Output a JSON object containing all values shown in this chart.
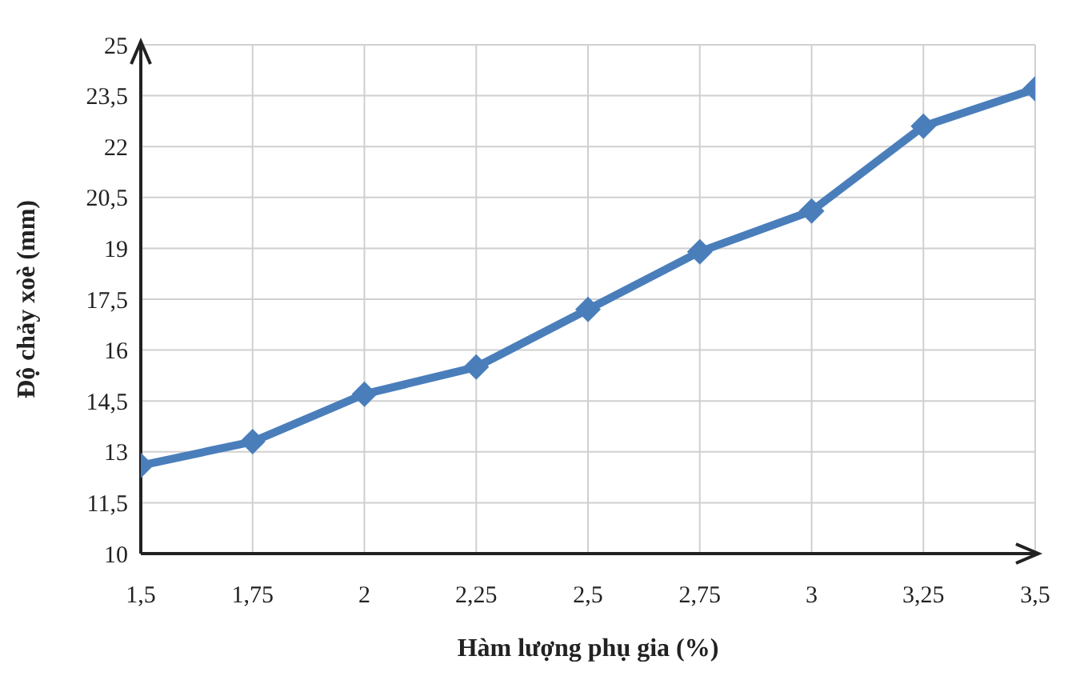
{
  "chart_data": {
    "type": "line",
    "xlabel": "Hàm lượng phụ gia (%)",
    "ylabel": "Độ chảy xoè (mm)",
    "x": [
      1.5,
      1.75,
      2,
      2.25,
      2.5,
      2.75,
      3,
      3.25,
      3.5
    ],
    "series": [
      {
        "color": "#4a7ebb",
        "values": [
          12.6,
          13.3,
          14.7,
          15.5,
          17.2,
          18.9,
          20.1,
          22.6,
          23.7
        ]
      }
    ],
    "xlim": [
      1.5,
      3.5
    ],
    "xticks": [
      {
        "value": 1.5,
        "label": "1,5"
      },
      {
        "value": 1.75,
        "label": "1,75"
      },
      2,
      {
        "value": 2.25,
        "label": "2,25"
      },
      {
        "value": 2.5,
        "label": "2,5"
      },
      {
        "value": 2.75,
        "label": "2,75"
      },
      3,
      {
        "value": 3.25,
        "label": "3,25"
      },
      {
        "value": 3.5,
        "label": "3,5"
      }
    ],
    "ylim": [
      10,
      25
    ],
    "yticks": [
      10,
      {
        "value": 11.5,
        "label": "11,5"
      },
      13,
      {
        "value": 14.5,
        "label": "14,5"
      },
      16,
      {
        "value": 17.5,
        "label": "17,5"
      },
      19,
      {
        "value": 20.5,
        "label": "20,5"
      },
      22,
      {
        "value": 23.5,
        "label": "23,5"
      },
      25
    ],
    "grid": true,
    "marker": "diamond",
    "line_style": "solid"
  }
}
